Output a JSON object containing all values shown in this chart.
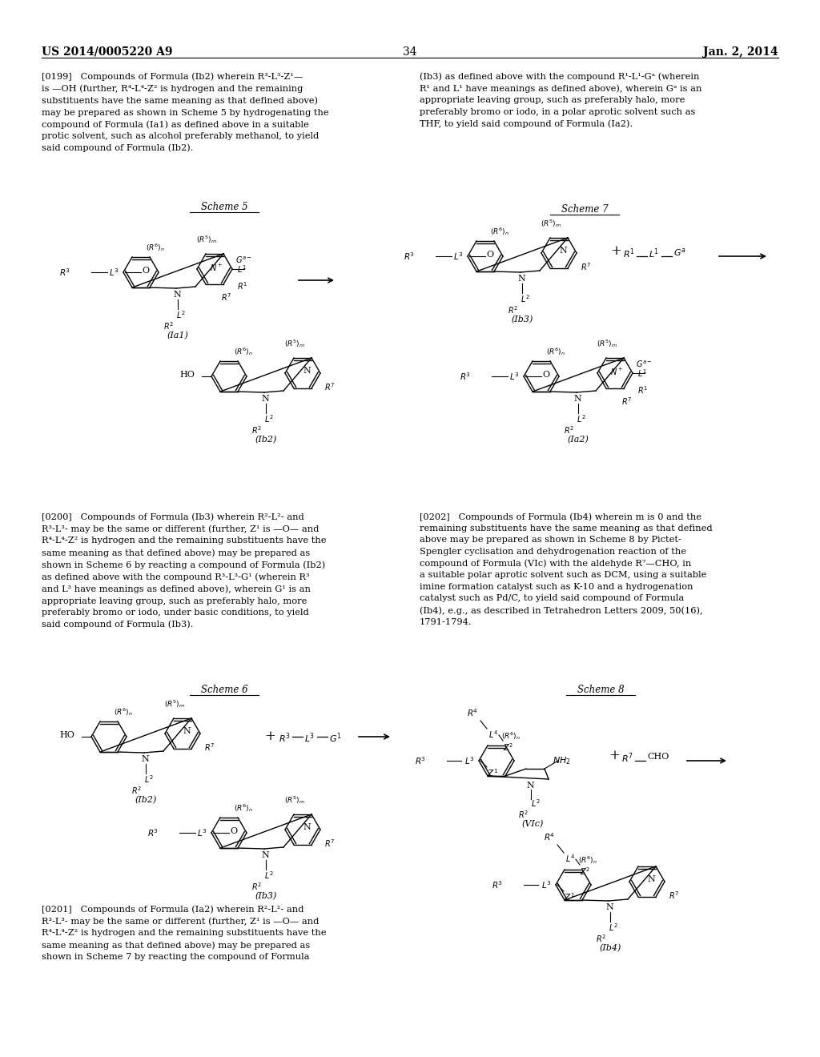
{
  "bg": "#ffffff",
  "header_left": "US 2014/0005220 A9",
  "header_right": "Jan. 2, 2014",
  "header_center": "34",
  "text_color": "#000000",
  "para0199": "[0199]   Compounds of Formula (Ib2) wherein R³-L³-Z¹—\nis —OH (further, R⁴-L⁴-Z² is hydrogen and the remaining\nsubstituents have the same meaning as that defined above)\nmay be prepared as shown in Scheme 5 by hydrogenating the\ncompound of Formula (Ia1) as defined above in a suitable\nprotic solvent, such as alcohol preferably methanol, to yield\nsaid compound of Formula (Ib2).",
  "para0200": "[0200]   Compounds of Formula (Ib3) wherein R²-L²- and\nR³-L³- may be the same or different (further, Z¹ is —O— and\nR⁴-L⁴-Z² is hydrogen and the remaining substituents have the\nsame meaning as that defined above) may be prepared as\nshown in Scheme 6 by reacting a compound of Formula (Ib2)\nas defined above with the compound R³-L³-G¹ (wherein R³\nand L³ have meanings as defined above), wherein G¹ is an\nappropriate leaving group, such as preferably halo, more\npreferably bromo or iodo, under basic conditions, to yield\nsaid compound of Formula (Ib3).",
  "para0201": "[0201]   Compounds of Formula (Ia2) wherein R²-L²- and\nR³-L³- may be the same or different (further, Z¹ is —O— and\nR⁴-L⁴-Z² is hydrogen and the remaining substituents have the\nsame meaning as that defined above) may be prepared as\nshown in Scheme 7 by reacting the compound of Formula",
  "para_right_top": "(Ib3) as defined above with the compound R¹-L¹-Gᵃ (wherein\nR¹ and L¹ have meanings as defined above), wherein Gᵃ is an\nappropriate leaving group, such as preferably halo, more\npreferably bromo or iodo, in a polar aprotic solvent such as\nTHF, to yield said compound of Formula (Ia2).",
  "para0202": "[0202]   Compounds of Formula (Ib4) wherein m is 0 and the\nremaining substituents have the same meaning as that defined\nabove may be prepared as shown in Scheme 8 by Pictet-\nSpengler cyclisation and dehydrogenation reaction of the\ncompound of Formula (VIc) with the aldehyde R⁷—CHO, in\na suitable polar aprotic solvent such as DCM, using a suitable\nimine formation catalyst such as K-10 and a hydrogenation\ncatalyst such as Pd/C, to yield said compound of Formula\n(Ib4), e.g., as described in Tetrahedron Letters 2009, 50(16),\n1791-1794."
}
